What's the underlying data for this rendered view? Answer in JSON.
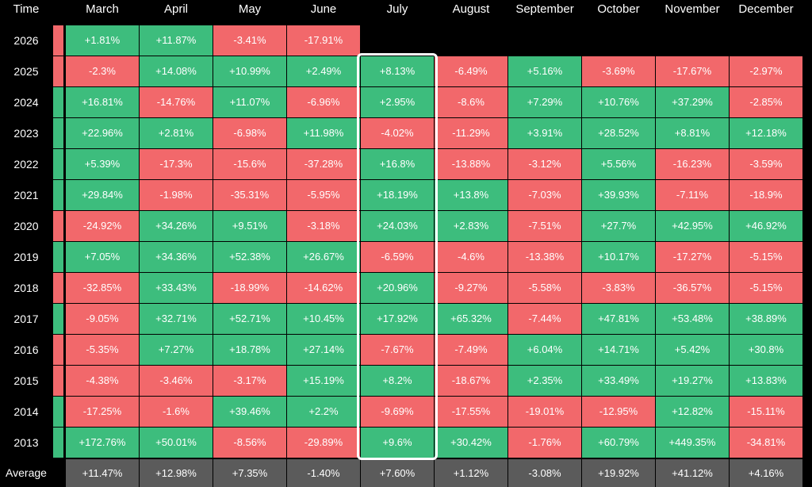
{
  "chart_data": {
    "type": "heatmap",
    "corner_label": "Time",
    "months": [
      "March",
      "April",
      "May",
      "June",
      "July",
      "August",
      "September",
      "October",
      "November",
      "December"
    ],
    "highlighted_month": "July",
    "colors": {
      "positive": "#3dbd7d",
      "negative": "#f2686b",
      "average_bg": "#5b5b5b",
      "background": "#000000",
      "highlight_border": "#ffffff"
    },
    "rows": [
      {
        "year": "2026",
        "stub": "negative",
        "values": [
          "+1.81%",
          "+11.87%",
          "-3.41%",
          "-17.91%",
          "",
          "",
          "",
          "",
          "",
          ""
        ]
      },
      {
        "year": "2025",
        "stub": "negative",
        "values": [
          "-2.3%",
          "+14.08%",
          "+10.99%",
          "+2.49%",
          "+8.13%",
          "-6.49%",
          "+5.16%",
          "-3.69%",
          "-17.67%",
          "-2.97%"
        ]
      },
      {
        "year": "2024",
        "stub": "positive",
        "values": [
          "+16.81%",
          "-14.76%",
          "+11.07%",
          "-6.96%",
          "+2.95%",
          "-8.6%",
          "+7.29%",
          "+10.76%",
          "+37.29%",
          "-2.85%"
        ]
      },
      {
        "year": "2023",
        "stub": "positive",
        "values": [
          "+22.96%",
          "+2.81%",
          "-6.98%",
          "+11.98%",
          "-4.02%",
          "-11.29%",
          "+3.91%",
          "+28.52%",
          "+8.81%",
          "+12.18%"
        ]
      },
      {
        "year": "2022",
        "stub": "positive",
        "values": [
          "+5.39%",
          "-17.3%",
          "-15.6%",
          "-37.28%",
          "+16.8%",
          "-13.88%",
          "-3.12%",
          "+5.56%",
          "-16.23%",
          "-3.59%"
        ]
      },
      {
        "year": "2021",
        "stub": "positive",
        "values": [
          "+29.84%",
          "-1.98%",
          "-35.31%",
          "-5.95%",
          "+18.19%",
          "+13.8%",
          "-7.03%",
          "+39.93%",
          "-7.11%",
          "-18.9%"
        ]
      },
      {
        "year": "2020",
        "stub": "negative",
        "values": [
          "-24.92%",
          "+34.26%",
          "+9.51%",
          "-3.18%",
          "+24.03%",
          "+2.83%",
          "-7.51%",
          "+27.7%",
          "+42.95%",
          "+46.92%"
        ]
      },
      {
        "year": "2019",
        "stub": "positive",
        "values": [
          "+7.05%",
          "+34.36%",
          "+52.38%",
          "+26.67%",
          "-6.59%",
          "-4.6%",
          "-13.38%",
          "+10.17%",
          "-17.27%",
          "-5.15%"
        ]
      },
      {
        "year": "2018",
        "stub": "negative",
        "values": [
          "-32.85%",
          "+33.43%",
          "-18.99%",
          "-14.62%",
          "+20.96%",
          "-9.27%",
          "-5.58%",
          "-3.83%",
          "-36.57%",
          "-5.15%"
        ]
      },
      {
        "year": "2017",
        "stub": "positive",
        "values": [
          "-9.05%",
          "+32.71%",
          "+52.71%",
          "+10.45%",
          "+17.92%",
          "+65.32%",
          "-7.44%",
          "+47.81%",
          "+53.48%",
          "+38.89%"
        ]
      },
      {
        "year": "2016",
        "stub": "negative",
        "values": [
          "-5.35%",
          "+7.27%",
          "+18.78%",
          "+27.14%",
          "-7.67%",
          "-7.49%",
          "+6.04%",
          "+14.71%",
          "+5.42%",
          "+30.8%"
        ]
      },
      {
        "year": "2015",
        "stub": "negative",
        "values": [
          "-4.38%",
          "-3.46%",
          "-3.17%",
          "+15.19%",
          "+8.2%",
          "-18.67%",
          "+2.35%",
          "+33.49%",
          "+19.27%",
          "+13.83%"
        ]
      },
      {
        "year": "2014",
        "stub": "positive",
        "values": [
          "-17.25%",
          "-1.6%",
          "+39.46%",
          "+2.2%",
          "-9.69%",
          "-17.55%",
          "-19.01%",
          "-12.95%",
          "+12.82%",
          "-15.11%"
        ]
      },
      {
        "year": "2013",
        "stub": "positive",
        "values": [
          "+172.76%",
          "+50.01%",
          "-8.56%",
          "-29.89%",
          "+9.6%",
          "+30.42%",
          "-1.76%",
          "+60.79%",
          "+449.35%",
          "-34.81%"
        ]
      }
    ],
    "average": {
      "label": "Average",
      "values": [
        "+11.47%",
        "+12.98%",
        "+7.35%",
        "-1.40%",
        "+7.60%",
        "+1.12%",
        "-3.08%",
        "+19.92%",
        "+41.12%",
        "+4.16%"
      ]
    }
  }
}
